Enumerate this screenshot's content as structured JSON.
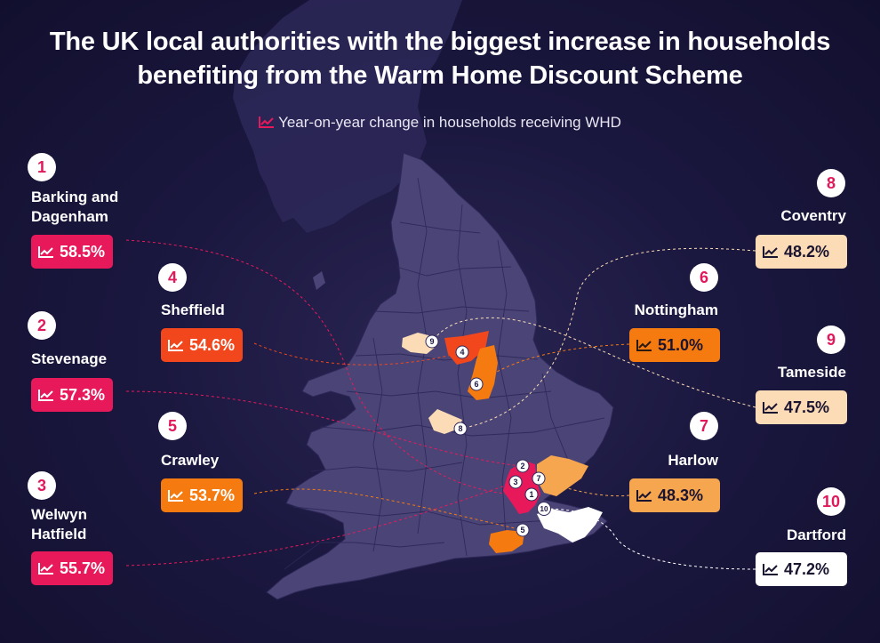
{
  "title_line1": "The UK local authorities with the biggest increase in households",
  "title_line2": "benefiting from the Warm Home Discount Scheme",
  "subtitle": "Year-on-year change in households receiving WHD",
  "icon_name": "trend-up-icon",
  "colors": {
    "background": "#1b1840",
    "land": "#4b4577",
    "rank_text": "#e0195b",
    "pink": "#e8195a",
    "red_orange": "#f2471c",
    "orange": "#f57a10",
    "light_orange": "#f6a64e",
    "peach": "#fbdcb6",
    "white": "#ffffff"
  },
  "entries": [
    {
      "rank": "1",
      "name": "Barking and\nDagenham",
      "value": "58.5%"
    },
    {
      "rank": "2",
      "name": "Stevenage",
      "value": "57.3%"
    },
    {
      "rank": "3",
      "name": "Welwyn\nHatfield",
      "value": "55.7%"
    },
    {
      "rank": "4",
      "name": "Sheffield",
      "value": "54.6%"
    },
    {
      "rank": "5",
      "name": "Crawley",
      "value": "53.7%"
    },
    {
      "rank": "6",
      "name": "Nottingham",
      "value": "51.0%"
    },
    {
      "rank": "7",
      "name": "Harlow",
      "value": "48.3%"
    },
    {
      "rank": "8",
      "name": "Coventry",
      "value": "48.2%"
    },
    {
      "rank": "9",
      "name": "Tameside",
      "value": "47.5%"
    },
    {
      "rank": "10",
      "name": "Dartford",
      "value": "47.2%"
    }
  ]
}
